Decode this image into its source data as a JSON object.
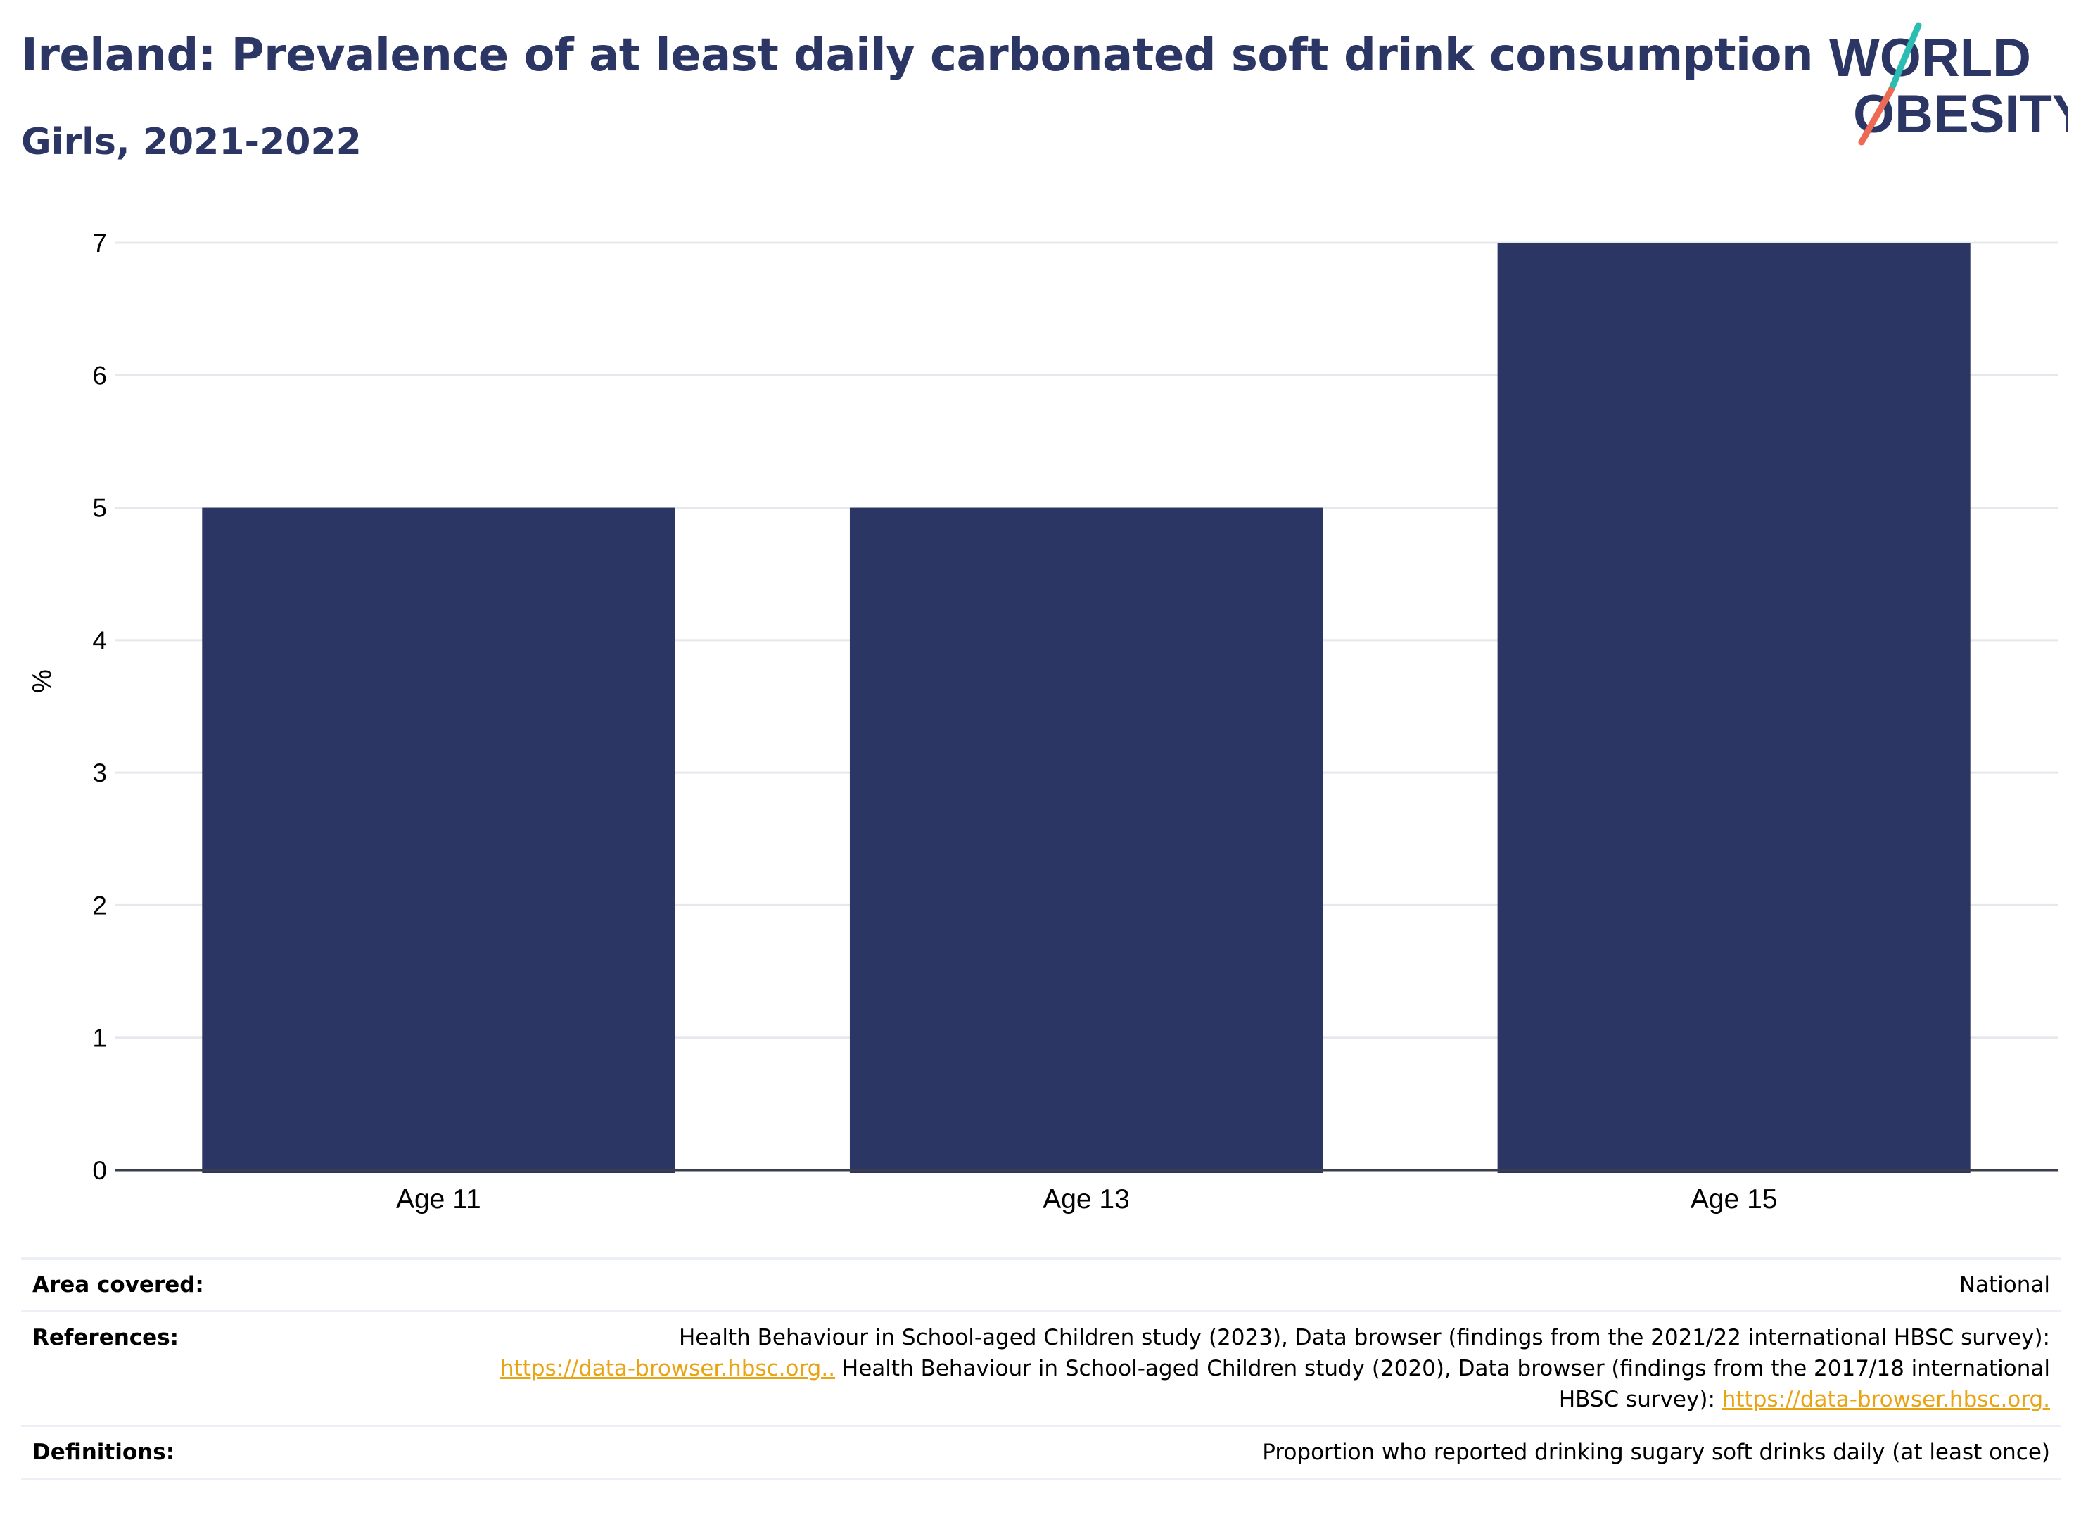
{
  "header": {
    "title": "Ireland: Prevalence of at least daily carbonated soft drink consumption",
    "subtitle": "Girls, 2021-2022"
  },
  "logo": {
    "line1": "WORLD",
    "line2": "OBESITY",
    "text_color": "#2b3664",
    "slash_colors": [
      "#2bbcb4",
      "#ee6a55"
    ]
  },
  "chart_data": {
    "type": "bar",
    "categories": [
      "Age 11",
      "Age 13",
      "Age 15"
    ],
    "values": [
      5,
      5,
      7
    ],
    "ylabel": "%",
    "xlabel": "",
    "ylim": [
      0,
      7
    ],
    "yticks": [
      0,
      1,
      2,
      3,
      4,
      5,
      6,
      7
    ],
    "grid": true,
    "bar_color": "#2b3664"
  },
  "info": {
    "area_label": "Area covered:",
    "area_value": "National",
    "references_label": "References:",
    "references_text1": "Health Behaviour in School-aged Children study (2023), Data browser (findings from the 2021/22 international HBSC survey):",
    "references_link1": "https://data-browser.hbsc.org..",
    "references_text2": " Health Behaviour in School-aged Children study (2020), Data browser (findings from the 2017/18 international HBSC survey): ",
    "references_link2": "https://data-browser.hbsc.org.",
    "definitions_label": "Definitions:",
    "definitions_value": "Proportion who reported drinking sugary soft drinks daily (at least once)"
  }
}
